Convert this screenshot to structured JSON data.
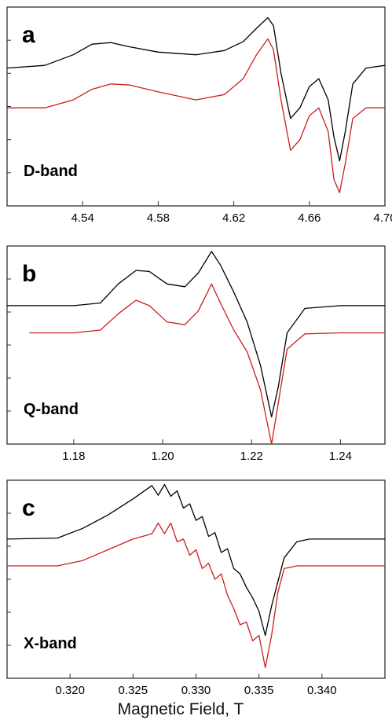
{
  "xlabel": "Magnetic Field, T",
  "colors": {
    "experimental": "#000000",
    "simulated": "#cc1f1f",
    "frame": "#333333"
  },
  "chart_data": [
    {
      "type": "line",
      "panel": "a",
      "band": "D-band",
      "xlim": [
        4.5,
        4.7
      ],
      "ylim": [
        -2.6,
        1.15
      ],
      "xticks": [
        4.54,
        4.58,
        4.62,
        4.66,
        4.7
      ],
      "xtick_labels": [
        "4.54",
        "4.58",
        "4.62",
        "4.66",
        "4.70"
      ],
      "series": [
        {
          "x": [
            4.5,
            4.52,
            4.535,
            4.545,
            4.555,
            4.565,
            4.58,
            4.6,
            4.615,
            4.625,
            4.632,
            4.638,
            4.641,
            4.645,
            4.65,
            4.655,
            4.66,
            4.665,
            4.67,
            4.673,
            4.676,
            4.679,
            4.683,
            4.69,
            4.7
          ],
          "values": [
            0.0,
            0.05,
            0.25,
            0.45,
            0.48,
            0.4,
            0.3,
            0.25,
            0.33,
            0.5,
            0.75,
            0.95,
            0.8,
            -0.1,
            -0.95,
            -0.75,
            -0.35,
            -0.2,
            -0.6,
            -1.3,
            -1.75,
            -1.2,
            -0.3,
            0.0,
            0.05
          ]
        },
        {
          "x": [
            4.5,
            4.52,
            4.535,
            4.545,
            4.555,
            4.565,
            4.58,
            4.6,
            4.615,
            4.625,
            4.632,
            4.638,
            4.641,
            4.645,
            4.65,
            4.655,
            4.66,
            4.665,
            4.67,
            4.673,
            4.676,
            4.679,
            4.683,
            4.69,
            4.7
          ],
          "values": [
            -0.75,
            -0.75,
            -0.6,
            -0.4,
            -0.3,
            -0.32,
            -0.45,
            -0.6,
            -0.5,
            -0.2,
            0.25,
            0.55,
            0.35,
            -0.6,
            -1.55,
            -1.35,
            -0.9,
            -0.75,
            -1.2,
            -2.1,
            -2.35,
            -1.8,
            -0.95,
            -0.75,
            -0.75
          ]
        }
      ]
    },
    {
      "type": "line",
      "panel": "b",
      "band": "Q-band",
      "xlim": [
        1.165,
        1.25
      ],
      "ylim": [
        -2.55,
        1.1
      ],
      "xticks": [
        1.18,
        1.2,
        1.22,
        1.24
      ],
      "xtick_labels": [
        "1.18",
        "1.20",
        "1.22",
        "1.24"
      ],
      "series": [
        {
          "x": [
            1.165,
            1.18,
            1.186,
            1.19,
            1.194,
            1.197,
            1.201,
            1.205,
            1.208,
            1.211,
            1.213,
            1.216,
            1.219,
            1.222,
            1.2245,
            1.226,
            1.228,
            1.232,
            1.24,
            1.25
          ],
          "values": [
            0.0,
            0.0,
            0.05,
            0.4,
            0.65,
            0.63,
            0.4,
            0.35,
            0.6,
            1.0,
            0.75,
            0.25,
            -0.3,
            -1.1,
            -2.05,
            -1.5,
            -0.5,
            -0.05,
            0.0,
            0.0
          ]
        },
        {
          "x": [
            1.17,
            1.18,
            1.186,
            1.19,
            1.194,
            1.197,
            1.201,
            1.205,
            1.208,
            1.211,
            1.213,
            1.216,
            1.219,
            1.222,
            1.2245,
            1.226,
            1.228,
            1.232,
            1.24,
            1.25
          ],
          "values": [
            -0.5,
            -0.5,
            -0.45,
            -0.15,
            0.1,
            0.0,
            -0.3,
            -0.35,
            -0.1,
            0.4,
            0.05,
            -0.45,
            -0.85,
            -1.55,
            -2.55,
            -1.8,
            -0.8,
            -0.52,
            -0.5,
            -0.5
          ]
        }
      ]
    },
    {
      "type": "line",
      "panel": "c",
      "band": "X-band",
      "xlim": [
        0.315,
        0.345
      ],
      "ylim": [
        -2.6,
        1.1
      ],
      "xticks": [
        0.32,
        0.325,
        0.33,
        0.335,
        0.34
      ],
      "xtick_labels": [
        "0.320",
        "0.325",
        "0.330",
        "0.335",
        "0.340"
      ],
      "series": [
        {
          "x": [
            0.315,
            0.319,
            0.321,
            0.323,
            0.325,
            0.3265,
            0.327,
            0.3275,
            0.328,
            0.3285,
            0.329,
            0.3295,
            0.33,
            0.3305,
            0.331,
            0.3315,
            0.332,
            0.3325,
            0.333,
            0.3335,
            0.334,
            0.3345,
            0.335,
            0.3355,
            0.336,
            0.3365,
            0.337,
            0.338,
            0.339,
            0.345
          ],
          "values": [
            0.0,
            0.02,
            0.2,
            0.45,
            0.75,
            1.0,
            0.82,
            1.02,
            0.8,
            0.9,
            0.58,
            0.66,
            0.35,
            0.42,
            0.05,
            0.12,
            -0.25,
            -0.18,
            -0.55,
            -0.65,
            -0.9,
            -1.1,
            -1.35,
            -1.8,
            -1.25,
            -0.8,
            -0.35,
            -0.05,
            0.0,
            0.0
          ]
        },
        {
          "x": [
            0.315,
            0.319,
            0.321,
            0.323,
            0.325,
            0.3265,
            0.327,
            0.3275,
            0.328,
            0.3285,
            0.329,
            0.3295,
            0.33,
            0.3305,
            0.331,
            0.3315,
            0.332,
            0.3325,
            0.333,
            0.3335,
            0.334,
            0.3345,
            0.335,
            0.3355,
            0.336,
            0.3365,
            0.337,
            0.338,
            0.339,
            0.345
          ],
          "values": [
            -0.5,
            -0.5,
            -0.4,
            -0.2,
            0.0,
            0.1,
            0.3,
            0.1,
            0.3,
            -0.05,
            0.0,
            -0.3,
            -0.2,
            -0.55,
            -0.45,
            -0.75,
            -0.65,
            -1.05,
            -1.3,
            -1.6,
            -1.55,
            -1.9,
            -1.8,
            -2.4,
            -1.8,
            -1.0,
            -0.55,
            -0.5,
            -0.5,
            -0.5
          ]
        }
      ]
    }
  ]
}
